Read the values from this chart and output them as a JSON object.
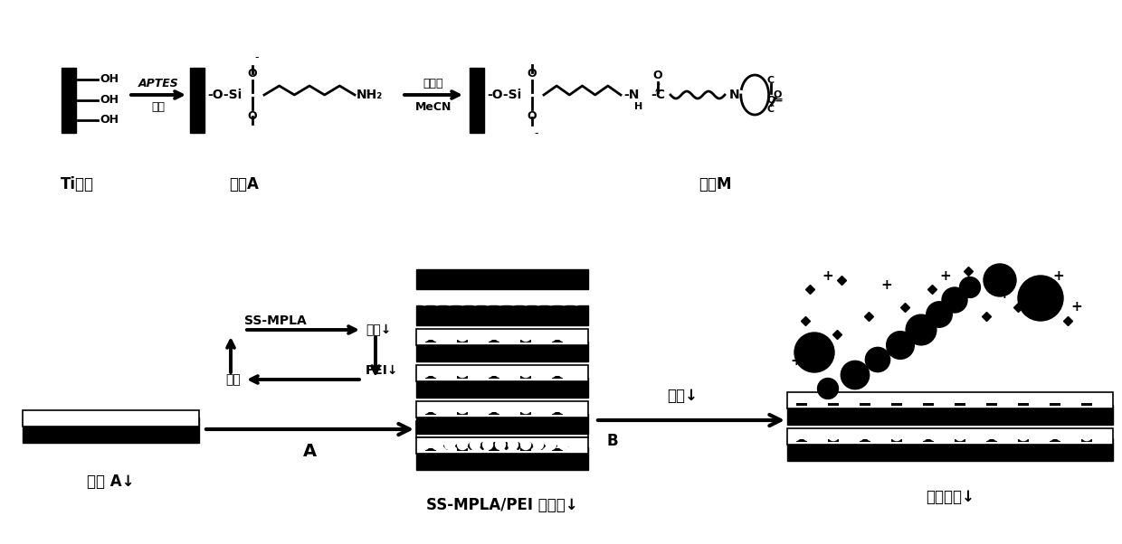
{
  "bg_color": "#ffffff",
  "fig_width": 12.4,
  "fig_height": 6.02,
  "dpi": 100,
  "top": {
    "label_ti": "Ti表面",
    "label_a": "表面A",
    "label_m": "表面M",
    "aptes": "APTES",
    "jia_ben": "甲苯",
    "cross_agent": "交联剂",
    "mecn": "MeCN"
  },
  "bottom": {
    "label_surfA": "表面 A↓",
    "label_A": "A",
    "label_B": "B",
    "label_multi": "SS-MPLA/PEI 多层膜↓",
    "label_drug": "药物释放↓",
    "label_hydro": "水解↓",
    "ss_mpla": "SS-MPLA→",
    "water1": "水洗↓",
    "water2": "水洗",
    "pei": "←PEI↓"
  }
}
